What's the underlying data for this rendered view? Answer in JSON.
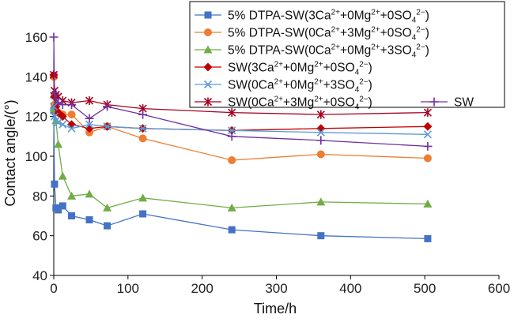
{
  "chart_data": {
    "type": "line",
    "xlabel": "Time/h",
    "ylabel": "Contact angle/(°)",
    "xlim": [
      0,
      600
    ],
    "ylim": [
      40,
      160
    ],
    "xticks": [
      0,
      100,
      200,
      300,
      400,
      500,
      600
    ],
    "yticks": [
      40,
      60,
      80,
      100,
      120,
      140,
      160
    ],
    "grid": false,
    "legend_position": "top-right",
    "series": [
      {
        "name": "5% DTPA-SW(3Ca2++0Mg2++0SO42−)",
        "name_parts": [
          [
            "5% DTPA-SW(3Ca",
            "n"
          ],
          [
            "2+",
            "sup"
          ],
          [
            "+0Mg",
            "n"
          ],
          [
            "2+",
            "sup"
          ],
          [
            "+0SO",
            "n"
          ],
          [
            "4",
            "sub"
          ],
          [
            "2−",
            "sup"
          ],
          [
            ")",
            "n"
          ]
        ],
        "color": "#4472c4",
        "marker": "square",
        "x": [
          0,
          1,
          3,
          6,
          12,
          24,
          48,
          72,
          120,
          240,
          360,
          504
        ],
        "y": [
          123,
          86,
          74,
          73,
          75,
          70,
          68,
          65,
          71,
          63,
          60,
          58.5
        ]
      },
      {
        "name": "5% DTPA-SW(0Ca2++3Mg2++0SO42−)",
        "name_parts": [
          [
            "5% DTPA-SW(0Ca",
            "n"
          ],
          [
            "2+",
            "sup"
          ],
          [
            "+3Mg",
            "n"
          ],
          [
            "2+",
            "sup"
          ],
          [
            "+0SO",
            "n"
          ],
          [
            "4",
            "sub"
          ],
          [
            "2−",
            "sup"
          ],
          [
            ")",
            "n"
          ]
        ],
        "color": "#ed7d31",
        "marker": "circle",
        "x": [
          0,
          1,
          3,
          6,
          12,
          24,
          48,
          72,
          120,
          240,
          360,
          504
        ],
        "y": [
          140,
          126,
          123,
          122,
          121,
          121,
          112,
          115,
          109,
          98,
          101,
          99
        ]
      },
      {
        "name": "5% DTPA-SW(0Ca2++0Mg2++3SO42−)",
        "name_parts": [
          [
            "5% DTPA-SW(0Ca",
            "n"
          ],
          [
            "2+",
            "sup"
          ],
          [
            "+0Mg",
            "n"
          ],
          [
            "2+",
            "sup"
          ],
          [
            "+3SO",
            "n"
          ],
          [
            "4",
            "sub"
          ],
          [
            "2−",
            "sup"
          ],
          [
            ")",
            "n"
          ]
        ],
        "color": "#70ad47",
        "marker": "triangle",
        "x": [
          0,
          1,
          3,
          6,
          12,
          24,
          48,
          72,
          120,
          240,
          360,
          504
        ],
        "y": [
          131,
          124,
          118,
          106,
          90,
          80,
          81,
          74,
          79,
          74,
          77,
          76
        ]
      },
      {
        "name": "SW(3Ca2++0Mg2++0SO42−)",
        "name_parts": [
          [
            "SW(3Ca",
            "n"
          ],
          [
            "2+",
            "sup"
          ],
          [
            "+0Mg",
            "n"
          ],
          [
            "2+",
            "sup"
          ],
          [
            "+0SO",
            "n"
          ],
          [
            "4",
            "sub"
          ],
          [
            "2−",
            "sup"
          ],
          [
            ")",
            "n"
          ]
        ],
        "color": "#c00000",
        "marker": "diamond",
        "x": [
          0,
          1,
          3,
          6,
          12,
          24,
          48,
          72,
          120,
          240,
          360,
          504
        ],
        "y": [
          141,
          130,
          125,
          122,
          120,
          116,
          114,
          115,
          114,
          113,
          114,
          115
        ]
      },
      {
        "name": "SW(0Ca2++0Mg2++3SO42−)",
        "name_parts": [
          [
            "SW(0Ca",
            "n"
          ],
          [
            "2+",
            "sup"
          ],
          [
            "+0Mg",
            "n"
          ],
          [
            "2+",
            "sup"
          ],
          [
            "+3SO",
            "n"
          ],
          [
            "4",
            "sub"
          ],
          [
            "2−",
            "sup"
          ],
          [
            ")",
            "n"
          ]
        ],
        "color": "#5b9bd5",
        "marker": "x",
        "x": [
          0,
          1,
          3,
          6,
          12,
          24,
          48,
          72,
          120,
          240,
          360,
          504
        ],
        "y": [
          125,
          120,
          118,
          117,
          116,
          114,
          116,
          115,
          114,
          113,
          112,
          111
        ]
      },
      {
        "name": "SW(0Ca2++3Mg2++0SO42−)",
        "name_parts": [
          [
            "SW(0Ca",
            "n"
          ],
          [
            "2+",
            "sup"
          ],
          [
            "+3Mg",
            "n"
          ],
          [
            "2+",
            "sup"
          ],
          [
            "+0SO",
            "n"
          ],
          [
            "4",
            "sub"
          ],
          [
            "2−",
            "sup"
          ],
          [
            ")",
            "n"
          ]
        ],
        "color": "#a50021",
        "marker": "star",
        "x": [
          0,
          1,
          3,
          6,
          12,
          24,
          48,
          72,
          120,
          240,
          360,
          504
        ],
        "y": [
          141,
          133,
          131,
          130,
          128,
          127,
          128,
          126,
          124,
          122,
          121,
          122
        ]
      },
      {
        "name": "SW",
        "name_parts": [
          [
            "SW",
            "n"
          ]
        ],
        "color": "#7030a0",
        "marker": "plus",
        "x": [
          0,
          1,
          3,
          6,
          12,
          24,
          48,
          72,
          120,
          240,
          360,
          504
        ],
        "y": [
          160,
          132,
          129,
          127,
          126,
          126,
          119,
          125,
          121,
          110,
          108,
          105
        ]
      }
    ]
  }
}
